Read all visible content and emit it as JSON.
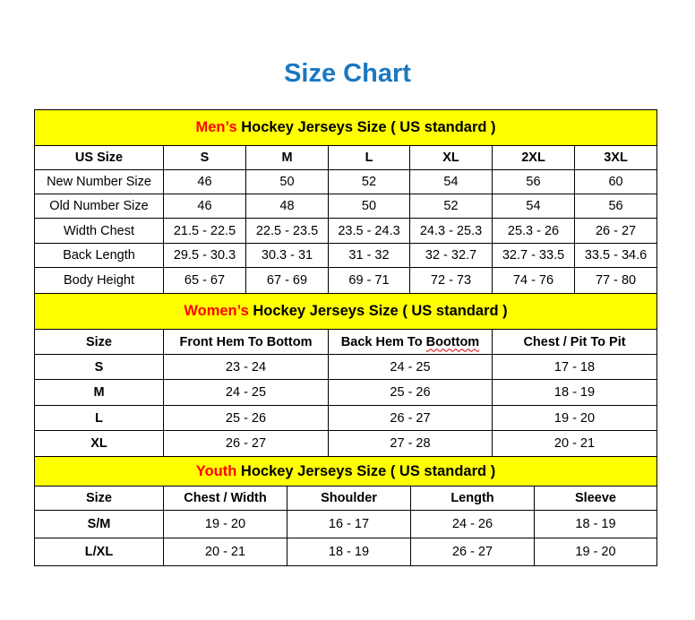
{
  "title": "Size Chart",
  "colors": {
    "title": "#1a78c2",
    "header_bg": "#ffff00",
    "accent_red": "#ff0000"
  },
  "sections": [
    {
      "id": "men",
      "header_highlight": "Men’s",
      "header_rest": " Hockey Jerseys Size ( US standard )",
      "columns": [
        "US Size",
        "S",
        "M",
        "L",
        "XL",
        "2XL",
        "3XL"
      ],
      "rows": [
        [
          "New Number Size",
          "46",
          "50",
          "52",
          "54",
          "56",
          "60"
        ],
        [
          "Old Number Size",
          "46",
          "48",
          "50",
          "52",
          "54",
          "56"
        ],
        [
          "Width Chest",
          "21.5 - 22.5",
          "22.5 - 23.5",
          "23.5 - 24.3",
          "24.3 - 25.3",
          "25.3 - 26",
          "26 - 27"
        ],
        [
          "Back Length",
          "29.5 - 30.3",
          "30.3 - 31",
          "31 - 32",
          "32 - 32.7",
          "32.7 - 33.5",
          "33.5 - 34.6"
        ],
        [
          "Body Height",
          "65 - 67",
          "67 - 69",
          "69 - 71",
          "72 - 73",
          "74 - 76",
          "77 - 80"
        ]
      ]
    },
    {
      "id": "women",
      "header_highlight": "Women’s",
      "header_rest": " Hockey Jerseys Size ( US standard )",
      "columns": [
        "Size",
        "Front Hem To Bottom",
        "Back Hem To Boottom",
        "Chest / Pit To Pit"
      ],
      "rows": [
        [
          "S",
          "23 - 24",
          "24 - 25",
          "17 - 18"
        ],
        [
          "M",
          "24 - 25",
          "25 - 26",
          "18 - 19"
        ],
        [
          "L",
          "25 - 26",
          "26 - 27",
          "19 - 20"
        ],
        [
          "XL",
          "26 - 27",
          "27 - 28",
          "20 - 21"
        ]
      ]
    },
    {
      "id": "youth",
      "header_highlight": "Youth",
      "header_rest": " Hockey Jerseys Size ( US standard )",
      "columns": [
        "Size",
        "Chest / Width",
        "Shoulder",
        "Length",
        "Sleeve"
      ],
      "rows": [
        [
          "S/M",
          "19 - 20",
          "16 - 17",
          "24 - 26",
          "18 - 19"
        ],
        [
          "L/XL",
          "20 - 21",
          "18 - 19",
          "26 - 27",
          "19 - 20"
        ]
      ]
    }
  ]
}
